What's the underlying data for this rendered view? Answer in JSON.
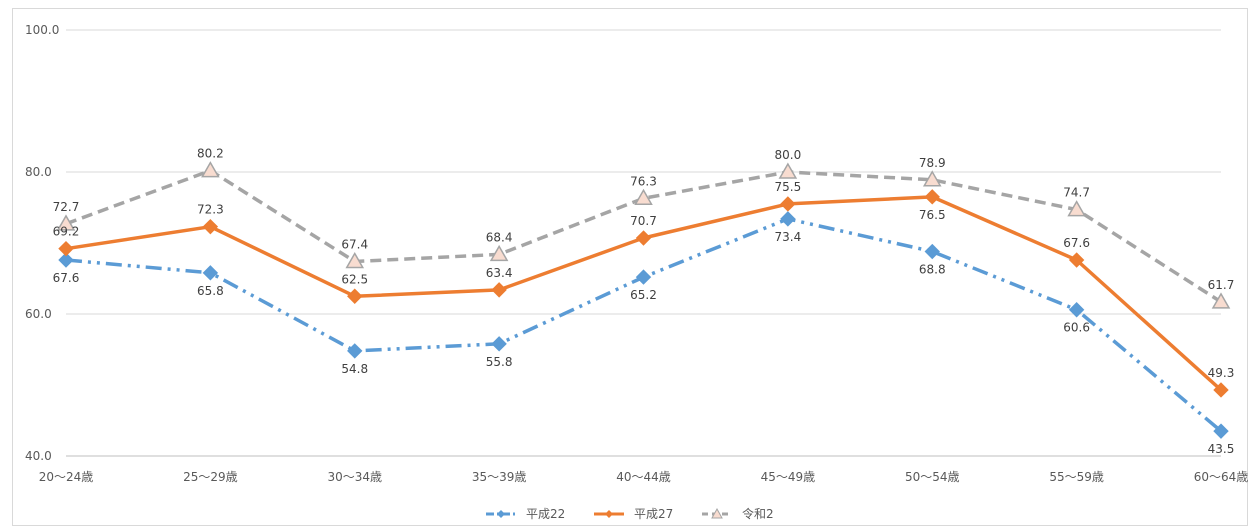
{
  "chart_data": {
    "type": "line",
    "categories": [
      "20～24歳",
      "25～29歳",
      "30～34歳",
      "35～39歳",
      "40～44歳",
      "45～49歳",
      "50～54歳",
      "55～59歳",
      "60～64歳"
    ],
    "ylim": [
      40,
      100
    ],
    "yticks": [
      "40.0",
      "60.0",
      "80.0",
      "100.0"
    ],
    "grid": true,
    "legend_position": "bottom",
    "series": [
      {
        "name": "平成22",
        "values": [
          67.6,
          65.8,
          54.8,
          55.8,
          65.2,
          73.4,
          68.8,
          60.6,
          43.5
        ],
        "color": "#5b9bd5",
        "marker": "diamond",
        "line_style": "dash-dot-dot",
        "labels": [
          "67.6",
          "65.8",
          "54.8",
          "55.8",
          "65.2",
          "73.4",
          "68.8",
          "60.6",
          "43.5"
        ]
      },
      {
        "name": "平成27",
        "values": [
          69.2,
          72.3,
          62.5,
          63.4,
          70.7,
          75.5,
          76.5,
          67.6,
          49.3
        ],
        "color": "#ed7d31",
        "marker": "diamond",
        "line_style": "solid",
        "labels": [
          "69.2",
          "72.3",
          "62.5",
          "63.4",
          "70.7",
          "75.5",
          "76.5",
          "67.6",
          "49.3"
        ]
      },
      {
        "name": "令和2",
        "values": [
          72.7,
          80.2,
          67.4,
          68.4,
          76.3,
          80.0,
          78.9,
          74.7,
          61.7
        ],
        "color": "#a5a5a5",
        "marker": "triangle",
        "marker_fill": "#f8dcd0",
        "line_style": "dash",
        "labels": [
          "72.7",
          "80.2",
          "67.4",
          "68.4",
          "76.3",
          "80.0",
          "78.9",
          "74.7",
          "61.7"
        ]
      }
    ]
  }
}
